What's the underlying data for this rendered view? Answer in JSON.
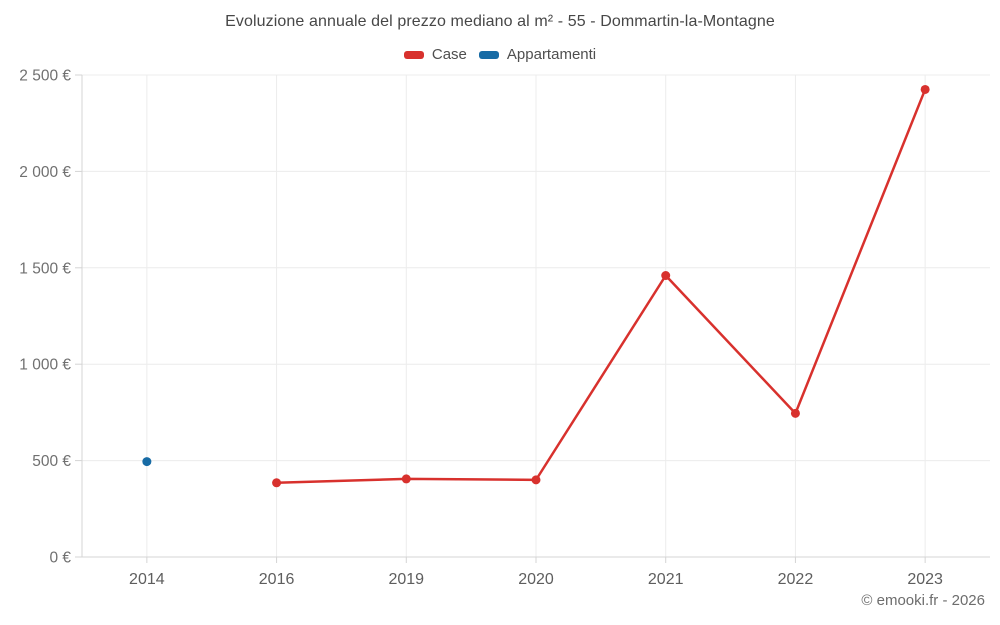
{
  "chart": {
    "title": "Evoluzione annuale del prezzo mediano al m² - 55 - Dommartin-la-Montagne",
    "watermark": "© emooki.fr - 2026"
  },
  "chart_data": {
    "type": "line",
    "title": "Evoluzione annuale del prezzo mediano al m² - 55 - Dommartin-la-Montagne",
    "categories": [
      "2014",
      "2016",
      "2019",
      "2020",
      "2021",
      "2022",
      "2023"
    ],
    "series": [
      {
        "name": "Case",
        "color": "#d8312d",
        "values": [
          null,
          385,
          405,
          400,
          1460,
          745,
          2425
        ]
      },
      {
        "name": "Appartamenti",
        "color": "#176ba5",
        "values": [
          495,
          null,
          null,
          null,
          null,
          null,
          null
        ]
      }
    ],
    "xlabel": "",
    "ylabel": "",
    "ytick_labels": [
      "0 €",
      "500 €",
      "1 000 €",
      "1 500 €",
      "2 000 €",
      "2 500 €"
    ],
    "ytick_values": [
      0,
      500,
      1000,
      1500,
      2000,
      2500
    ],
    "ylim": [
      0,
      2500
    ],
    "grid": true,
    "legend_position": "top",
    "marker_radius": 4.5,
    "line_width": 2.5
  },
  "colors": {
    "grid": "#ececec",
    "axis": "#d4d4d4",
    "title_text": "#474747",
    "tick_text": "#707070",
    "xtick_text": "#5e5e5e",
    "legend_text": "#4f4f4f",
    "watermark_text": "#6d6d6d",
    "background": "#ffffff"
  }
}
